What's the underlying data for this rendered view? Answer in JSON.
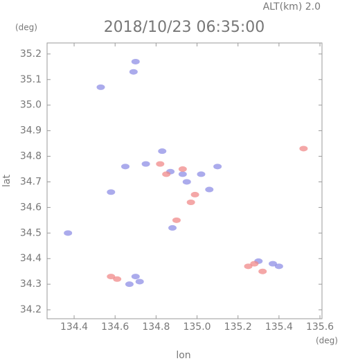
{
  "chart_data": {
    "type": "scatter",
    "title": "2018/10/23 06:35:00",
    "subtitle": "ALT(km) 2.0",
    "x_label": "lon",
    "y_label": "lat",
    "x_unit": "(deg)",
    "y_unit": "(deg)",
    "xlim": [
      134.268,
      135.61
    ],
    "ylim": [
      34.165,
      35.243
    ],
    "xticks": [
      134.4,
      134.6,
      134.8,
      {
        "value": 135.0,
        "label": "135.0"
      },
      135.2,
      135.4,
      135.6
    ],
    "yticks": [
      34.2,
      34.3,
      34.4,
      34.5,
      34.6,
      34.7,
      34.8,
      34.9,
      {
        "value": 35.0,
        "label": "35.0"
      },
      35.1,
      35.2
    ],
    "series": [
      {
        "color": "#8f8fe6",
        "x": [
          134.37,
          134.53,
          134.72,
          134.7,
          134.67,
          134.65,
          134.75,
          134.83,
          134.87,
          134.93,
          134.88,
          134.95,
          135.02,
          135.4,
          135.37,
          135.3,
          134.69,
          134.7,
          134.58,
          135.1,
          135.06
        ],
        "y": [
          34.5,
          35.07,
          34.31,
          34.33,
          34.3,
          34.76,
          34.77,
          34.82,
          34.74,
          34.73,
          34.52,
          34.7,
          34.73,
          34.37,
          34.38,
          34.39,
          35.13,
          35.17,
          34.66,
          34.76,
          34.67
        ]
      },
      {
        "color": "#f08a8a",
        "x": [
          134.82,
          134.85,
          134.9,
          134.97,
          134.61,
          134.58,
          135.28,
          135.32,
          135.25,
          135.52,
          134.93,
          134.99
        ],
        "y": [
          34.77,
          34.73,
          34.55,
          34.62,
          34.32,
          34.33,
          34.38,
          34.35,
          34.37,
          34.83,
          34.75,
          34.65
        ]
      }
    ]
  }
}
